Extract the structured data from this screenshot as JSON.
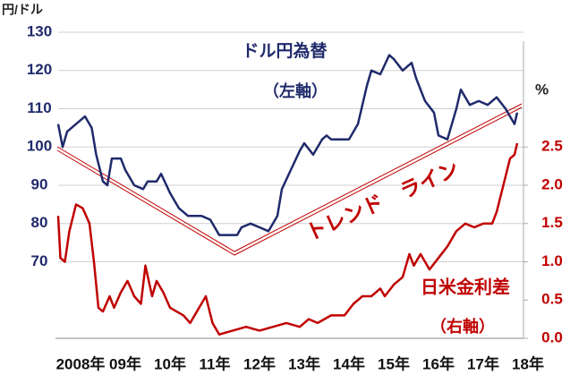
{
  "chart_data": {
    "type": "line",
    "y_unit_label": "円/ドル",
    "y2_unit_label": "%",
    "annotations": [
      "ドル円為替",
      "（左軸）",
      "日米金利差",
      "（右軸）",
      "トレンド　ライン"
    ],
    "xlim": [
      2008,
      2018.4
    ],
    "xticks": [
      {
        "value": 2008,
        "label": "2008年"
      },
      {
        "value": 2009,
        "label": "09年"
      },
      {
        "value": 2010,
        "label": "10年"
      },
      {
        "value": 2011,
        "label": "11年"
      },
      {
        "value": 2012,
        "label": "12年"
      },
      {
        "value": 2013,
        "label": "13年"
      },
      {
        "value": 2014,
        "label": "14年"
      },
      {
        "value": 2015,
        "label": "15年"
      },
      {
        "value": 2016,
        "label": "16年"
      },
      {
        "value": 2017,
        "label": "17年"
      },
      {
        "value": 2018,
        "label": "18年"
      }
    ],
    "ylim": [
      50,
      130
    ],
    "yticks": [
      70,
      80,
      90,
      100,
      110,
      120,
      130
    ],
    "y2lim": [
      0,
      4
    ],
    "y2ticks": [
      {
        "value": 0,
        "label": "0.0"
      },
      0.5,
      {
        "value": 1,
        "label": "1.0"
      },
      1.5,
      {
        "value": 2,
        "label": "2.0"
      },
      2.5
    ],
    "grid": true,
    "series": [
      {
        "name": "ドル円為替",
        "color": "#1f2a6b",
        "x": [
          2008.0,
          2008.1,
          2008.2,
          2008.4,
          2008.6,
          2008.75,
          2008.85,
          2009.0,
          2009.1,
          2009.2,
          2009.4,
          2009.5,
          2009.7,
          2009.9,
          2010.0,
          2010.2,
          2010.3,
          2010.5,
          2010.7,
          2010.9,
          2011.0,
          2011.2,
          2011.4,
          2011.6,
          2011.8,
          2012.0,
          2012.1,
          2012.3,
          2012.5,
          2012.7,
          2012.9,
          2013.0,
          2013.2,
          2013.4,
          2013.5,
          2013.7,
          2013.9,
          2014.0,
          2014.1,
          2014.3,
          2014.5,
          2014.7,
          2014.9,
          2015.0,
          2015.2,
          2015.4,
          2015.5,
          2015.7,
          2015.9,
          2016.0,
          2016.2,
          2016.4,
          2016.5,
          2016.7,
          2016.9,
          2017.0,
          2017.2,
          2017.4,
          2017.6,
          2017.8,
          2018.0,
          2018.1,
          2018.2,
          2018.26
        ],
        "values": [
          106,
          100,
          104,
          106,
          108,
          105,
          98,
          91,
          90,
          97,
          97,
          94,
          90,
          89,
          91,
          91,
          93,
          88,
          84,
          82,
          82,
          82,
          81,
          77,
          77,
          77,
          79,
          80,
          79,
          78,
          82,
          89,
          94,
          99,
          101,
          98,
          102,
          103,
          102,
          102,
          102,
          106,
          116,
          120,
          119,
          124,
          123,
          120,
          122,
          118,
          112,
          109,
          103,
          102,
          110,
          115,
          111,
          112,
          111,
          113,
          110,
          108,
          106,
          109
        ]
      },
      {
        "name": "日米金利差",
        "color": "#c00000",
        "axis": "y2",
        "x": [
          2008.0,
          2008.05,
          2008.15,
          2008.25,
          2008.4,
          2008.55,
          2008.7,
          2008.8,
          2008.9,
          2009.0,
          2009.15,
          2009.25,
          2009.4,
          2009.55,
          2009.7,
          2009.85,
          2009.95,
          2010.1,
          2010.2,
          2010.35,
          2010.5,
          2010.8,
          2010.95,
          2011.1,
          2011.3,
          2011.45,
          2011.6,
          2011.9,
          2012.2,
          2012.5,
          2012.8,
          2013.1,
          2013.4,
          2013.6,
          2013.8,
          2014.1,
          2014.4,
          2014.6,
          2014.8,
          2015.0,
          2015.2,
          2015.3,
          2015.5,
          2015.7,
          2015.85,
          2015.95,
          2016.1,
          2016.3,
          2016.5,
          2016.7,
          2016.9,
          2017.1,
          2017.3,
          2017.5,
          2017.7,
          2017.8,
          2017.95,
          2018.1,
          2018.2,
          2018.26
        ],
        "values": [
          1.6,
          1.05,
          1.0,
          1.4,
          1.75,
          1.7,
          1.5,
          1.0,
          0.4,
          0.35,
          0.55,
          0.4,
          0.6,
          0.75,
          0.55,
          0.45,
          0.95,
          0.55,
          0.75,
          0.6,
          0.4,
          0.3,
          0.2,
          0.35,
          0.55,
          0.2,
          0.05,
          0.1,
          0.15,
          0.1,
          0.15,
          0.2,
          0.15,
          0.25,
          0.2,
          0.3,
          0.3,
          0.45,
          0.55,
          0.55,
          0.65,
          0.55,
          0.7,
          0.8,
          1.1,
          0.95,
          1.1,
          0.9,
          1.05,
          1.2,
          1.4,
          1.5,
          1.45,
          1.5,
          1.5,
          1.65,
          2.0,
          2.35,
          2.4,
          2.55
        ]
      }
    ]
  }
}
